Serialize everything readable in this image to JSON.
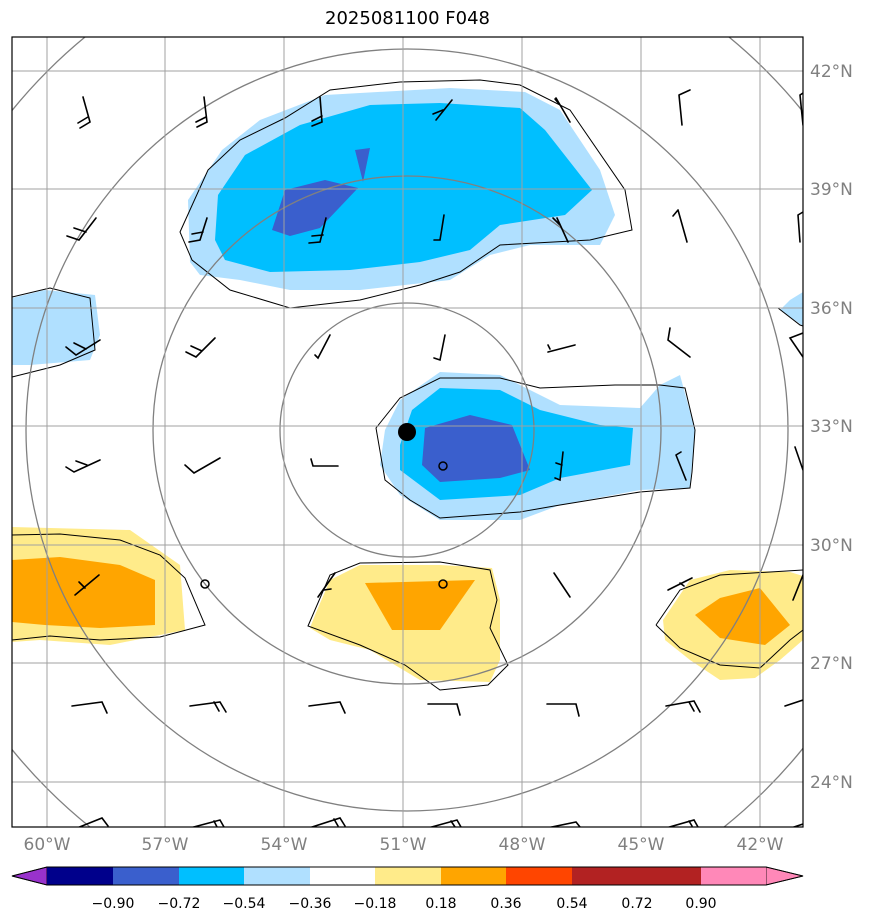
{
  "title": "2025081100 F048",
  "map": {
    "lon_labels": [
      "60°W",
      "57°W",
      "54°W",
      "51°W",
      "48°W",
      "45°W",
      "42°W"
    ],
    "lat_labels": [
      "42°N",
      "39°N",
      "36°N",
      "33°N",
      "30°N",
      "27°N",
      "24°N"
    ]
  },
  "colorbar": {
    "tick_labels": [
      "−0.90",
      "−0.72",
      "−0.54",
      "−0.36",
      "−0.18",
      "0.18",
      "0.36",
      "0.54",
      "0.72",
      "0.90"
    ],
    "colors": [
      "#9932cc",
      "#00008b",
      "#3a5fcd",
      "#00bfff",
      "#b0e0ff",
      "#ffffff",
      "#ffeb8a",
      "#ffa500",
      "#ff4500",
      "#b22222",
      "#ff88b8"
    ]
  },
  "colors": {
    "grid": "#a0a0a0",
    "range_rings": "#808080",
    "contour": "#000000",
    "barb": "#000000"
  }
}
